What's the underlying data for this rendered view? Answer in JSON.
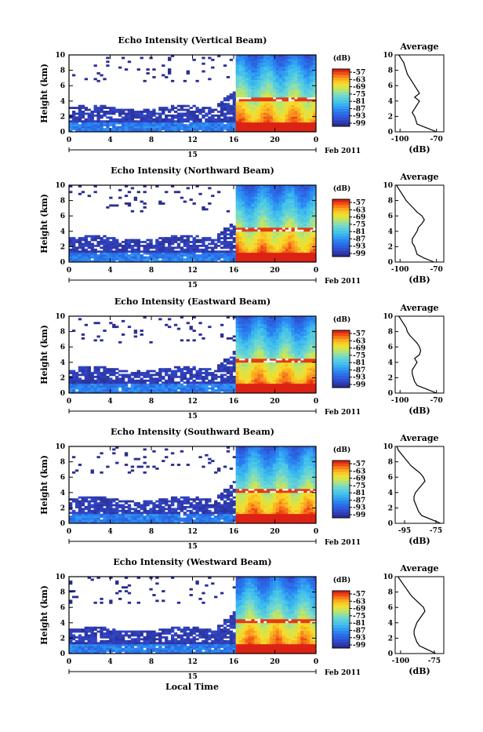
{
  "figure": {
    "xlabel": "Local Time",
    "date_label": "Feb 2011",
    "colorbar_unit": "(dB)",
    "colorbar_ticks": [
      "-57",
      "-63",
      "-69",
      "-75",
      "-81",
      "-87",
      "-93",
      "-99"
    ],
    "y_ticks": [
      "0",
      "2",
      "4",
      "6",
      "8",
      "10"
    ],
    "x_ticks": [
      "0",
      "4",
      "8",
      "12",
      "16",
      "20",
      "0"
    ],
    "day_label": "15",
    "ylabel": "Height (km)",
    "avg_title": "Average",
    "avg_xlabel": "(dB)"
  },
  "chart_data": [
    {
      "type": "heatmap",
      "title": "Echo Intensity (Vertical Beam)",
      "avg_xticks": [
        "-100",
        "-70"
      ],
      "avg_xlim": [
        -104,
        -64
      ],
      "ylim": [
        0,
        10
      ],
      "xlim": [
        0,
        24
      ],
      "onset_hours": 16.3,
      "bright_layer_km": 4.3,
      "avg_profile": {
        "height_km": [
          0,
          0.5,
          1,
          1.5,
          2,
          2.5,
          3,
          3.5,
          4,
          4.5,
          5,
          5.5,
          6,
          6.5,
          7,
          7.5,
          8,
          8.5,
          9,
          9.5,
          10
        ],
        "db": [
          -70,
          -78,
          -86,
          -87,
          -88,
          -90,
          -88,
          -86,
          -84,
          -88,
          -84,
          -86,
          -88,
          -90,
          -92,
          -94,
          -95,
          -96,
          -97,
          -99,
          -101
        ]
      }
    },
    {
      "type": "heatmap",
      "title": "Echo Intensity (Northward Beam)",
      "avg_xticks": [
        "-100",
        "-70"
      ],
      "avg_xlim": [
        -104,
        -64
      ],
      "ylim": [
        0,
        10
      ],
      "xlim": [
        0,
        24
      ],
      "onset_hours": 16.3,
      "bright_layer_km": 4.3,
      "avg_profile": {
        "height_km": [
          0,
          0.5,
          1,
          1.5,
          2,
          2.5,
          3,
          3.5,
          4,
          4.5,
          5,
          5.5,
          6,
          6.5,
          7,
          7.5,
          8,
          8.5,
          9,
          9.5,
          10
        ],
        "db": [
          -72,
          -80,
          -86,
          -87,
          -88,
          -90,
          -90,
          -88,
          -86,
          -85,
          -82,
          -80,
          -82,
          -86,
          -89,
          -92,
          -95,
          -97,
          -99,
          -101,
          -103
        ]
      }
    },
    {
      "type": "heatmap",
      "title": "Echo Intensity (Eastward Beam)",
      "avg_xticks": [
        "-100",
        "-70"
      ],
      "avg_xlim": [
        -104,
        -64
      ],
      "ylim": [
        0,
        10
      ],
      "xlim": [
        0,
        24
      ],
      "onset_hours": 16.3,
      "bright_layer_km": 4.3,
      "avg_profile": {
        "height_km": [
          0,
          0.5,
          1,
          1.5,
          2,
          2.5,
          3,
          3.5,
          4,
          4.5,
          5,
          5.5,
          6,
          6.5,
          7,
          7.5,
          8,
          8.5,
          9,
          9.5,
          10
        ],
        "db": [
          -70,
          -78,
          -86,
          -88,
          -89,
          -90,
          -90,
          -88,
          -86,
          -88,
          -84,
          -83,
          -84,
          -86,
          -89,
          -92,
          -94,
          -95,
          -97,
          -99,
          -101
        ]
      }
    },
    {
      "type": "heatmap",
      "title": "Echo Intensity (Southward Beam)",
      "avg_xticks": [
        "-95",
        "-75"
      ],
      "avg_xlim": [
        -101,
        -70
      ],
      "ylim": [
        0,
        10
      ],
      "xlim": [
        0,
        24
      ],
      "onset_hours": 16.3,
      "bright_layer_km": 4.3,
      "avg_profile": {
        "height_km": [
          0,
          0.5,
          1,
          1.5,
          2,
          2.5,
          3,
          3.5,
          4,
          4.5,
          5,
          5.5,
          6,
          6.5,
          7,
          7.5,
          8,
          8.5,
          9,
          9.5,
          10
        ],
        "db": [
          -72,
          -78,
          -84,
          -86,
          -87,
          -88,
          -89,
          -89,
          -88,
          -86,
          -84,
          -82,
          -83,
          -85,
          -88,
          -91,
          -93,
          -95,
          -97,
          -99,
          -100
        ]
      }
    },
    {
      "type": "heatmap",
      "title": "Echo Intensity (Westward Beam)",
      "avg_xticks": [
        "-100",
        "-75"
      ],
      "avg_xlim": [
        -104,
        -68
      ],
      "ylim": [
        0,
        10
      ],
      "xlim": [
        0,
        24
      ],
      "onset_hours": 16.3,
      "bright_layer_km": 4.3,
      "avg_profile": {
        "height_km": [
          0,
          0.5,
          1,
          1.5,
          2,
          2.5,
          3,
          3.5,
          4,
          4.5,
          5,
          5.5,
          6,
          6.5,
          7,
          7.5,
          8,
          8.5,
          9,
          9.5,
          10
        ],
        "db": [
          -74,
          -80,
          -86,
          -88,
          -89,
          -90,
          -90,
          -89,
          -88,
          -86,
          -84,
          -82,
          -83,
          -86,
          -89,
          -92,
          -94,
          -96,
          -98,
          -100,
          -102
        ]
      }
    }
  ]
}
